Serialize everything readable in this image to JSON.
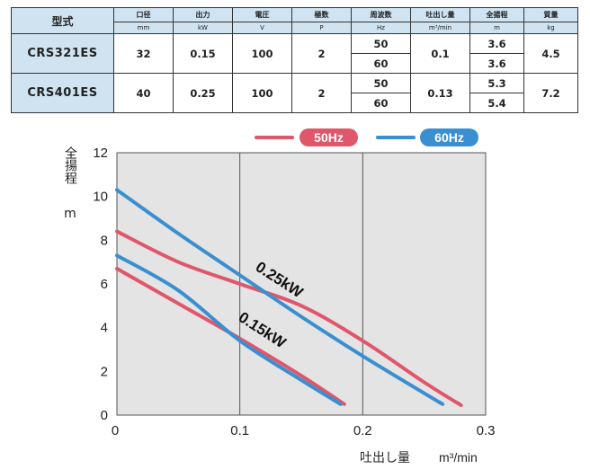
{
  "table": {
    "headers": [
      {
        "label": "型式",
        "unit": ""
      },
      {
        "label": "口径",
        "unit": "mm"
      },
      {
        "label": "出力",
        "unit": "kW"
      },
      {
        "label": "電圧",
        "unit": "V"
      },
      {
        "label": "極数",
        "unit": "P"
      },
      {
        "label": "周波数",
        "unit": "Hz"
      },
      {
        "label": "吐出し量",
        "unit": "m³/min"
      },
      {
        "label": "全揚程",
        "unit": "m"
      },
      {
        "label": "質量",
        "unit": "kg"
      }
    ],
    "rows": [
      {
        "model": "CRS321ES",
        "bore": "32",
        "output": "0.15",
        "voltage": "100",
        "poles": "2",
        "freq": [
          "50",
          "60"
        ],
        "discharge": "0.1",
        "head": [
          "3.6",
          "3.6"
        ],
        "mass": "4.5"
      },
      {
        "model": "CRS401ES",
        "bore": "40",
        "output": "0.25",
        "voltage": "100",
        "poles": "2",
        "freq": [
          "50",
          "60"
        ],
        "discharge": "0.13",
        "head": [
          "5.3",
          "5.4"
        ],
        "mass": "7.2"
      }
    ]
  },
  "chart_data": {
    "type": "line",
    "xlabel": "吐出し量",
    "xlabel_unit": "m³/min",
    "ylabel": "全揚程",
    "ylabel_unit": "m",
    "xlim": [
      0,
      0.3
    ],
    "ylim": [
      0,
      12
    ],
    "xticks": [
      "0",
      "0.1",
      "0.2",
      "0.3"
    ],
    "yticks": [
      "0",
      "2",
      "4",
      "6",
      "8",
      "10",
      "12"
    ],
    "grid": true,
    "legend_position": "top-right",
    "legend": [
      {
        "label": "50Hz",
        "color": "#e0566a"
      },
      {
        "label": "60Hz",
        "color": "#3a8fd0"
      }
    ],
    "annotations": [
      "0.25kW",
      "0.15kW"
    ],
    "series": [
      {
        "legend": "50Hz",
        "output": "0.25kW",
        "color": "#e0566a",
        "x": [
          0,
          0.05,
          0.1,
          0.15,
          0.2,
          0.25,
          0.28
        ],
        "y": [
          8.4,
          7.0,
          6.0,
          5.0,
          3.4,
          1.5,
          0.45
        ]
      },
      {
        "legend": "60Hz",
        "output": "0.25kW",
        "color": "#3a8fd0",
        "x": [
          0,
          0.05,
          0.1,
          0.15,
          0.2,
          0.25,
          0.265
        ],
        "y": [
          10.3,
          8.3,
          6.4,
          4.5,
          2.7,
          1.0,
          0.5
        ]
      },
      {
        "legend": "50Hz",
        "output": "0.15kW",
        "color": "#e0566a",
        "x": [
          0,
          0.05,
          0.1,
          0.15,
          0.185
        ],
        "y": [
          6.7,
          5.1,
          3.5,
          1.8,
          0.5
        ]
      },
      {
        "legend": "60Hz",
        "output": "0.15kW",
        "color": "#3a8fd0",
        "x": [
          0,
          0.05,
          0.1,
          0.15,
          0.182
        ],
        "y": [
          7.3,
          5.7,
          3.4,
          1.6,
          0.5
        ]
      }
    ]
  }
}
